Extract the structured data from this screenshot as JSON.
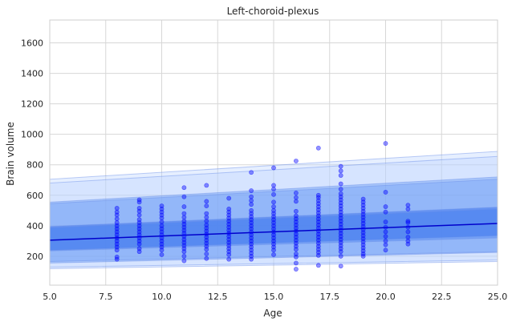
{
  "chart_data": {
    "type": "scatter",
    "title": "Left-choroid-plexus",
    "xlabel": "Age",
    "ylabel": "Brain volume",
    "xlim": [
      5,
      25
    ],
    "ylim": [
      10,
      1750
    ],
    "xticks": [
      5.0,
      7.5,
      10.0,
      12.5,
      15.0,
      17.5,
      20.0,
      22.5,
      25.0
    ],
    "xtick_labels": [
      "5.0",
      "7.5",
      "10.0",
      "12.5",
      "15.0",
      "17.5",
      "20.0",
      "22.5",
      "25.0"
    ],
    "yticks": [
      200,
      400,
      600,
      800,
      1000,
      1200,
      1400,
      1600
    ],
    "ytick_labels": [
      "200",
      "400",
      "600",
      "800",
      "1000",
      "1200",
      "1400",
      "1600"
    ],
    "grid": true,
    "colors": {
      "points": "#0000ff",
      "fit_line": "#0000cc",
      "band_light": "#b8d0ff",
      "band_medium": "#6f9ff5",
      "band_dark": "#3f78ee",
      "band_edge": "#6b8fe8"
    },
    "fit_line": {
      "x": [
        5,
        25
      ],
      "y": [
        305,
        415
      ]
    },
    "percentile_bands": [
      {
        "lower_x": [
          5,
          25
        ],
        "lower_y": [
          118,
          165
        ],
        "upper_x": [
          5,
          25
        ],
        "upper_y": [
          705,
          888
        ],
        "opacity": 0.35
      },
      {
        "lower_x": [
          5,
          25
        ],
        "lower_y": [
          128,
          175
        ],
        "upper_x": [
          5,
          25
        ],
        "upper_y": [
          680,
          855
        ],
        "opacity": 0.35
      },
      {
        "lower_x": [
          5,
          25
        ],
        "lower_y": [
          155,
          225
        ],
        "upper_x": [
          5,
          25
        ],
        "upper_y": [
          555,
          720
        ],
        "opacity": 0.45
      },
      {
        "lower_x": [
          5,
          25
        ],
        "lower_y": [
          165,
          230
        ],
        "upper_x": [
          5,
          25
        ],
        "upper_y": [
          545,
          705
        ],
        "opacity": 0.35
      },
      {
        "lower_x": [
          5,
          25
        ],
        "lower_y": [
          240,
          335
        ],
        "upper_x": [
          5,
          25
        ],
        "upper_y": [
          395,
          522
        ],
        "opacity": 0.55
      },
      {
        "lower_x": [
          5,
          25
        ],
        "lower_y": [
          235,
          320
        ],
        "upper_x": [
          5,
          25
        ],
        "upper_y": [
          388,
          510
        ],
        "opacity": 0.35
      }
    ],
    "points": [
      {
        "x": 8,
        "y": 180
      },
      {
        "x": 8,
        "y": 195
      },
      {
        "x": 8,
        "y": 240
      },
      {
        "x": 8,
        "y": 260
      },
      {
        "x": 8,
        "y": 280
      },
      {
        "x": 8,
        "y": 300
      },
      {
        "x": 8,
        "y": 320
      },
      {
        "x": 8,
        "y": 340
      },
      {
        "x": 8,
        "y": 360
      },
      {
        "x": 8,
        "y": 380
      },
      {
        "x": 8,
        "y": 400
      },
      {
        "x": 8,
        "y": 420
      },
      {
        "x": 8,
        "y": 445
      },
      {
        "x": 8,
        "y": 470
      },
      {
        "x": 8,
        "y": 490
      },
      {
        "x": 8,
        "y": 515
      },
      {
        "x": 9,
        "y": 230
      },
      {
        "x": 9,
        "y": 250
      },
      {
        "x": 9,
        "y": 280
      },
      {
        "x": 9,
        "y": 300
      },
      {
        "x": 9,
        "y": 320
      },
      {
        "x": 9,
        "y": 340
      },
      {
        "x": 9,
        "y": 360
      },
      {
        "x": 9,
        "y": 380
      },
      {
        "x": 9,
        "y": 400
      },
      {
        "x": 9,
        "y": 420
      },
      {
        "x": 9,
        "y": 440
      },
      {
        "x": 9,
        "y": 470
      },
      {
        "x": 9,
        "y": 495
      },
      {
        "x": 9,
        "y": 515
      },
      {
        "x": 9,
        "y": 555
      },
      {
        "x": 9,
        "y": 570
      },
      {
        "x": 10,
        "y": 210
      },
      {
        "x": 10,
        "y": 240
      },
      {
        "x": 10,
        "y": 260
      },
      {
        "x": 10,
        "y": 280
      },
      {
        "x": 10,
        "y": 300
      },
      {
        "x": 10,
        "y": 320
      },
      {
        "x": 10,
        "y": 340
      },
      {
        "x": 10,
        "y": 360
      },
      {
        "x": 10,
        "y": 380
      },
      {
        "x": 10,
        "y": 400
      },
      {
        "x": 10,
        "y": 425
      },
      {
        "x": 10,
        "y": 450
      },
      {
        "x": 10,
        "y": 470
      },
      {
        "x": 10,
        "y": 490
      },
      {
        "x": 10,
        "y": 510
      },
      {
        "x": 10,
        "y": 530
      },
      {
        "x": 11,
        "y": 170
      },
      {
        "x": 11,
        "y": 200
      },
      {
        "x": 11,
        "y": 230
      },
      {
        "x": 11,
        "y": 250
      },
      {
        "x": 11,
        "y": 270
      },
      {
        "x": 11,
        "y": 290
      },
      {
        "x": 11,
        "y": 310
      },
      {
        "x": 11,
        "y": 330
      },
      {
        "x": 11,
        "y": 350
      },
      {
        "x": 11,
        "y": 370
      },
      {
        "x": 11,
        "y": 390
      },
      {
        "x": 11,
        "y": 410
      },
      {
        "x": 11,
        "y": 430
      },
      {
        "x": 11,
        "y": 455
      },
      {
        "x": 11,
        "y": 480
      },
      {
        "x": 11,
        "y": 525
      },
      {
        "x": 11,
        "y": 590
      },
      {
        "x": 11,
        "y": 650
      },
      {
        "x": 12,
        "y": 185
      },
      {
        "x": 12,
        "y": 215
      },
      {
        "x": 12,
        "y": 245
      },
      {
        "x": 12,
        "y": 265
      },
      {
        "x": 12,
        "y": 285
      },
      {
        "x": 12,
        "y": 305
      },
      {
        "x": 12,
        "y": 325
      },
      {
        "x": 12,
        "y": 345
      },
      {
        "x": 12,
        "y": 365
      },
      {
        "x": 12,
        "y": 385
      },
      {
        "x": 12,
        "y": 405
      },
      {
        "x": 12,
        "y": 430
      },
      {
        "x": 12,
        "y": 455
      },
      {
        "x": 12,
        "y": 480
      },
      {
        "x": 12,
        "y": 530
      },
      {
        "x": 12,
        "y": 560
      },
      {
        "x": 12,
        "y": 665
      },
      {
        "x": 13,
        "y": 180
      },
      {
        "x": 13,
        "y": 210
      },
      {
        "x": 13,
        "y": 230
      },
      {
        "x": 13,
        "y": 250
      },
      {
        "x": 13,
        "y": 270
      },
      {
        "x": 13,
        "y": 290
      },
      {
        "x": 13,
        "y": 310
      },
      {
        "x": 13,
        "y": 330
      },
      {
        "x": 13,
        "y": 350
      },
      {
        "x": 13,
        "y": 370
      },
      {
        "x": 13,
        "y": 390
      },
      {
        "x": 13,
        "y": 410
      },
      {
        "x": 13,
        "y": 430
      },
      {
        "x": 13,
        "y": 450
      },
      {
        "x": 13,
        "y": 470
      },
      {
        "x": 13,
        "y": 490
      },
      {
        "x": 13,
        "y": 510
      },
      {
        "x": 13,
        "y": 580
      },
      {
        "x": 14,
        "y": 180
      },
      {
        "x": 14,
        "y": 200
      },
      {
        "x": 14,
        "y": 220
      },
      {
        "x": 14,
        "y": 240
      },
      {
        "x": 14,
        "y": 260
      },
      {
        "x": 14,
        "y": 280
      },
      {
        "x": 14,
        "y": 300
      },
      {
        "x": 14,
        "y": 320
      },
      {
        "x": 14,
        "y": 340
      },
      {
        "x": 14,
        "y": 360
      },
      {
        "x": 14,
        "y": 380
      },
      {
        "x": 14,
        "y": 400
      },
      {
        "x": 14,
        "y": 420
      },
      {
        "x": 14,
        "y": 440
      },
      {
        "x": 14,
        "y": 460
      },
      {
        "x": 14,
        "y": 480
      },
      {
        "x": 14,
        "y": 500
      },
      {
        "x": 14,
        "y": 540
      },
      {
        "x": 14,
        "y": 565
      },
      {
        "x": 14,
        "y": 590
      },
      {
        "x": 14,
        "y": 630
      },
      {
        "x": 14,
        "y": 750
      },
      {
        "x": 15,
        "y": 210
      },
      {
        "x": 15,
        "y": 240
      },
      {
        "x": 15,
        "y": 260
      },
      {
        "x": 15,
        "y": 280
      },
      {
        "x": 15,
        "y": 300
      },
      {
        "x": 15,
        "y": 320
      },
      {
        "x": 15,
        "y": 340
      },
      {
        "x": 15,
        "y": 360
      },
      {
        "x": 15,
        "y": 380
      },
      {
        "x": 15,
        "y": 400
      },
      {
        "x": 15,
        "y": 420
      },
      {
        "x": 15,
        "y": 440
      },
      {
        "x": 15,
        "y": 460
      },
      {
        "x": 15,
        "y": 480
      },
      {
        "x": 15,
        "y": 500
      },
      {
        "x": 15,
        "y": 525
      },
      {
        "x": 15,
        "y": 555
      },
      {
        "x": 15,
        "y": 605
      },
      {
        "x": 15,
        "y": 640
      },
      {
        "x": 15,
        "y": 665
      },
      {
        "x": 15,
        "y": 780
      },
      {
        "x": 16,
        "y": 115
      },
      {
        "x": 16,
        "y": 155
      },
      {
        "x": 16,
        "y": 195
      },
      {
        "x": 16,
        "y": 215
      },
      {
        "x": 16,
        "y": 245
      },
      {
        "x": 16,
        "y": 265
      },
      {
        "x": 16,
        "y": 285
      },
      {
        "x": 16,
        "y": 305
      },
      {
        "x": 16,
        "y": 325
      },
      {
        "x": 16,
        "y": 345
      },
      {
        "x": 16,
        "y": 365
      },
      {
        "x": 16,
        "y": 385
      },
      {
        "x": 16,
        "y": 405
      },
      {
        "x": 16,
        "y": 425
      },
      {
        "x": 16,
        "y": 445
      },
      {
        "x": 16,
        "y": 465
      },
      {
        "x": 16,
        "y": 495
      },
      {
        "x": 16,
        "y": 560
      },
      {
        "x": 16,
        "y": 585
      },
      {
        "x": 16,
        "y": 615
      },
      {
        "x": 16,
        "y": 825
      },
      {
        "x": 17,
        "y": 140
      },
      {
        "x": 17,
        "y": 205
      },
      {
        "x": 17,
        "y": 225
      },
      {
        "x": 17,
        "y": 245
      },
      {
        "x": 17,
        "y": 265
      },
      {
        "x": 17,
        "y": 285
      },
      {
        "x": 17,
        "y": 305
      },
      {
        "x": 17,
        "y": 325
      },
      {
        "x": 17,
        "y": 345
      },
      {
        "x": 17,
        "y": 365
      },
      {
        "x": 17,
        "y": 385
      },
      {
        "x": 17,
        "y": 405
      },
      {
        "x": 17,
        "y": 425
      },
      {
        "x": 17,
        "y": 445
      },
      {
        "x": 17,
        "y": 465
      },
      {
        "x": 17,
        "y": 485
      },
      {
        "x": 17,
        "y": 505
      },
      {
        "x": 17,
        "y": 525
      },
      {
        "x": 17,
        "y": 545
      },
      {
        "x": 17,
        "y": 565
      },
      {
        "x": 17,
        "y": 585
      },
      {
        "x": 17,
        "y": 600
      },
      {
        "x": 17,
        "y": 910
      },
      {
        "x": 18,
        "y": 135
      },
      {
        "x": 18,
        "y": 200
      },
      {
        "x": 18,
        "y": 230
      },
      {
        "x": 18,
        "y": 250
      },
      {
        "x": 18,
        "y": 270
      },
      {
        "x": 18,
        "y": 290
      },
      {
        "x": 18,
        "y": 310
      },
      {
        "x": 18,
        "y": 330
      },
      {
        "x": 18,
        "y": 350
      },
      {
        "x": 18,
        "y": 370
      },
      {
        "x": 18,
        "y": 390
      },
      {
        "x": 18,
        "y": 410
      },
      {
        "x": 18,
        "y": 430
      },
      {
        "x": 18,
        "y": 450
      },
      {
        "x": 18,
        "y": 470
      },
      {
        "x": 18,
        "y": 490
      },
      {
        "x": 18,
        "y": 510
      },
      {
        "x": 18,
        "y": 530
      },
      {
        "x": 18,
        "y": 550
      },
      {
        "x": 18,
        "y": 570
      },
      {
        "x": 18,
        "y": 590
      },
      {
        "x": 18,
        "y": 610
      },
      {
        "x": 18,
        "y": 640
      },
      {
        "x": 18,
        "y": 675
      },
      {
        "x": 18,
        "y": 730
      },
      {
        "x": 18,
        "y": 760
      },
      {
        "x": 18,
        "y": 790
      },
      {
        "x": 19,
        "y": 200
      },
      {
        "x": 19,
        "y": 215
      },
      {
        "x": 19,
        "y": 235
      },
      {
        "x": 19,
        "y": 255
      },
      {
        "x": 19,
        "y": 275
      },
      {
        "x": 19,
        "y": 295
      },
      {
        "x": 19,
        "y": 315
      },
      {
        "x": 19,
        "y": 335
      },
      {
        "x": 19,
        "y": 355
      },
      {
        "x": 19,
        "y": 375
      },
      {
        "x": 19,
        "y": 395
      },
      {
        "x": 19,
        "y": 415
      },
      {
        "x": 19,
        "y": 435
      },
      {
        "x": 19,
        "y": 455
      },
      {
        "x": 19,
        "y": 475
      },
      {
        "x": 19,
        "y": 495
      },
      {
        "x": 19,
        "y": 515
      },
      {
        "x": 19,
        "y": 535
      },
      {
        "x": 19,
        "y": 555
      },
      {
        "x": 19,
        "y": 575
      },
      {
        "x": 20,
        "y": 240
      },
      {
        "x": 20,
        "y": 275
      },
      {
        "x": 20,
        "y": 300
      },
      {
        "x": 20,
        "y": 330
      },
      {
        "x": 20,
        "y": 360
      },
      {
        "x": 20,
        "y": 390
      },
      {
        "x": 20,
        "y": 425
      },
      {
        "x": 20,
        "y": 490
      },
      {
        "x": 20,
        "y": 525
      },
      {
        "x": 20,
        "y": 620
      },
      {
        "x": 20,
        "y": 940
      },
      {
        "x": 21,
        "y": 280
      },
      {
        "x": 21,
        "y": 300
      },
      {
        "x": 21,
        "y": 325
      },
      {
        "x": 21,
        "y": 360
      },
      {
        "x": 21,
        "y": 390
      },
      {
        "x": 21,
        "y": 420
      },
      {
        "x": 21,
        "y": 430
      },
      {
        "x": 21,
        "y": 510
      },
      {
        "x": 21,
        "y": 535
      }
    ]
  }
}
